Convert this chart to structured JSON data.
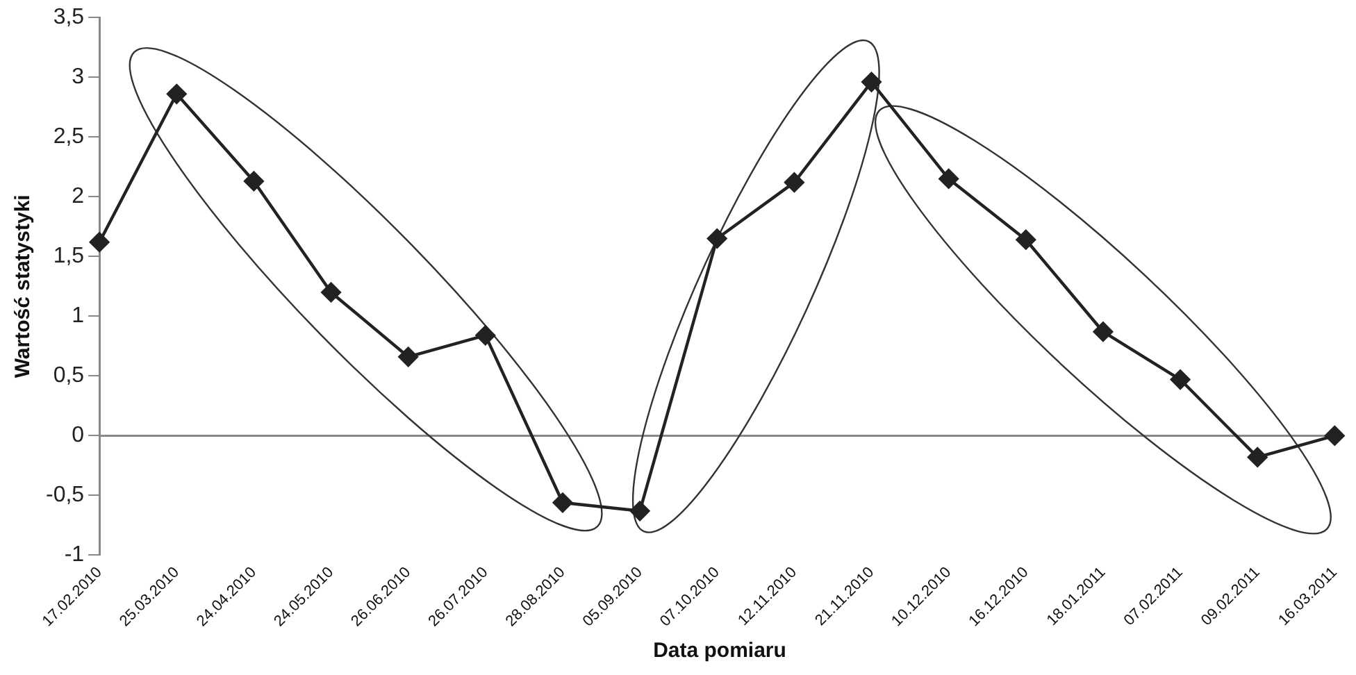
{
  "chart_data": {
    "type": "line",
    "xlabel": "Data pomiaru",
    "ylabel": "Wartość statystyki",
    "categories": [
      "17.02.2010",
      "25.03.2010",
      "24.04.2010",
      "24.05.2010",
      "26.06.2010",
      "26.07.2010",
      "28.08.2010",
      "05.09.2010",
      "07.10.2010",
      "12.11.2010",
      "21.11.2010",
      "10.12.2010",
      "16.12.2010",
      "18.01.2011",
      "07.02.2011",
      "09.02.2011",
      "16.03.2011"
    ],
    "series": [
      {
        "color": "#222222",
        "values": [
          1.62,
          2.86,
          2.13,
          1.2,
          0.66,
          0.84,
          -0.56,
          -0.63,
          1.65,
          2.12,
          2.96,
          2.15,
          1.64,
          0.87,
          0.47,
          -0.18,
          0.0
        ]
      }
    ],
    "ylim": [
      -1,
      3.5
    ],
    "yticks": [
      {
        "value": -1,
        "label": "-1"
      },
      {
        "value": -0.5,
        "label": "-0,5"
      },
      {
        "value": 0,
        "label": "0"
      },
      {
        "value": 0.5,
        "label": "0,5"
      },
      {
        "value": 1,
        "label": "1"
      },
      {
        "value": 1.5,
        "label": "1,5"
      },
      {
        "value": 2,
        "label": "2"
      },
      {
        "value": 2.5,
        "label": "2,5"
      },
      {
        "value": 3,
        "label": "3"
      },
      {
        "value": 3.5,
        "label": "3,5"
      }
    ],
    "ref_lines": [
      {
        "axis": "y",
        "value": 0,
        "color": "#888888"
      }
    ],
    "grid": false,
    "legend": false,
    "marker": "diamond",
    "line_style": "solid"
  }
}
